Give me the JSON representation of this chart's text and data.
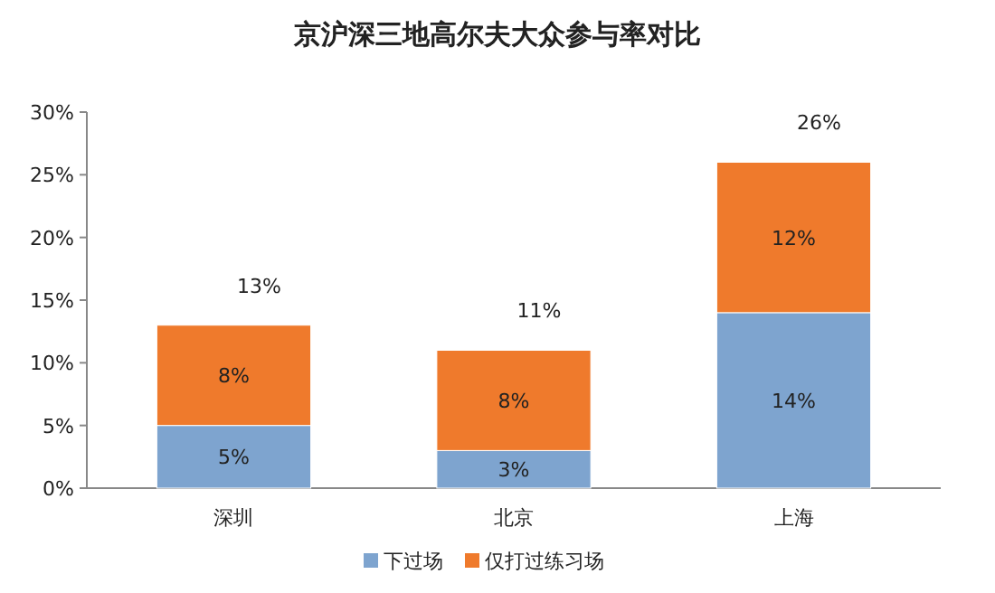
{
  "chart_data": {
    "type": "bar",
    "title": "京沪深三地高尔夫大众参与率对比",
    "categories": [
      "深圳",
      "北京",
      "上海"
    ],
    "stacked": true,
    "series": [
      {
        "name": "下过场",
        "color": "#7ea4cf",
        "values": [
          5,
          3,
          14
        ],
        "value_labels": [
          "5%",
          "3%",
          "14%"
        ]
      },
      {
        "name": "仅打过练习场",
        "color": "#ef7a2c",
        "values": [
          8,
          8,
          12
        ],
        "value_labels": [
          "8%",
          "8%",
          "12%"
        ]
      }
    ],
    "totals": [
      "13%",
      "11%",
      "26%"
    ],
    "ylim": [
      0,
      30
    ],
    "yticks": [
      {
        "value": 0,
        "label": "0%"
      },
      {
        "value": 5,
        "label": "5%"
      },
      {
        "value": 10,
        "label": "10%"
      },
      {
        "value": 15,
        "label": "15%"
      },
      {
        "value": 20,
        "label": "20%"
      },
      {
        "value": 25,
        "label": "25%"
      },
      {
        "value": 30,
        "label": "30%"
      }
    ],
    "grid": false,
    "legend": "bottom"
  }
}
